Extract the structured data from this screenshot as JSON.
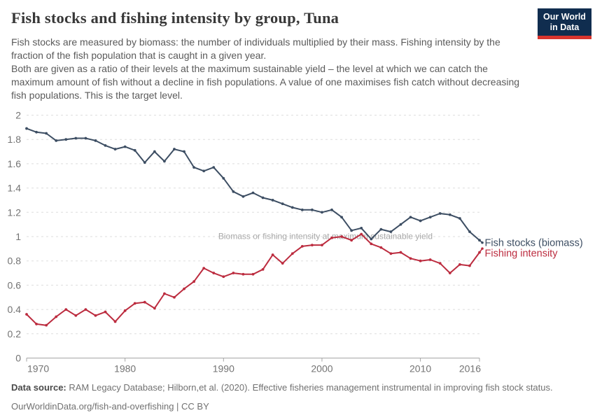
{
  "header": {
    "title": "Fish stocks and fishing intensity by group, Tuna",
    "logo": {
      "line1": "Our World",
      "line2": "in Data",
      "bg_color": "#102d4f",
      "bar_color": "#d8352e"
    }
  },
  "subtitle": {
    "para1": "Fish stocks are measured by biomass: the number of individuals multiplied by their mass. Fishing intensity by the fraction of the fish population that is caught in a given year.",
    "para2": "Both are given as a ratio of their levels at the maximum sustainable yield – the level at which we can catch the maximum amount of fish without a decline in fish populations. A value of one maximises fish catch without decreasing fish populations. This is the target level."
  },
  "chart_data": {
    "type": "line",
    "title": "Fish stocks and fishing intensity by group, Tuna",
    "xlabel": "",
    "ylabel": "",
    "x": [
      1970,
      1971,
      1972,
      1973,
      1974,
      1975,
      1976,
      1977,
      1978,
      1979,
      1980,
      1981,
      1982,
      1983,
      1984,
      1985,
      1986,
      1987,
      1988,
      1989,
      1990,
      1991,
      1992,
      1993,
      1994,
      1995,
      1996,
      1997,
      1998,
      1999,
      2000,
      2001,
      2002,
      2003,
      2004,
      2005,
      2006,
      2007,
      2008,
      2009,
      2010,
      2011,
      2012,
      2013,
      2014,
      2015,
      2016
    ],
    "series": [
      {
        "name": "Fish stocks (biomass)",
        "color": "#3d4e63",
        "values": [
          1.89,
          1.86,
          1.85,
          1.79,
          1.8,
          1.81,
          1.81,
          1.79,
          1.75,
          1.72,
          1.74,
          1.71,
          1.61,
          1.7,
          1.62,
          1.72,
          1.7,
          1.57,
          1.54,
          1.57,
          1.48,
          1.37,
          1.33,
          1.36,
          1.32,
          1.3,
          1.27,
          1.24,
          1.22,
          1.22,
          1.2,
          1.22,
          1.16,
          1.05,
          1.07,
          0.98,
          1.06,
          1.04,
          1.1,
          1.16,
          1.13,
          1.16,
          1.19,
          1.18,
          1.15,
          1.04,
          0.97
        ]
      },
      {
        "name": "Fishing intensity",
        "color": "#bc2c3f",
        "values": [
          0.36,
          0.28,
          0.27,
          0.34,
          0.4,
          0.35,
          0.4,
          0.35,
          0.38,
          0.3,
          0.39,
          0.45,
          0.46,
          0.41,
          0.53,
          0.5,
          0.57,
          0.63,
          0.74,
          0.7,
          0.67,
          0.7,
          0.69,
          0.69,
          0.73,
          0.85,
          0.78,
          0.86,
          0.92,
          0.93,
          0.93,
          0.99,
          1.0,
          0.97,
          1.02,
          0.94,
          0.91,
          0.86,
          0.87,
          0.82,
          0.8,
          0.81,
          0.78,
          0.7,
          0.77,
          0.76,
          0.87
        ]
      }
    ],
    "ylim": [
      0,
      2
    ],
    "yticks": [
      0,
      0.2,
      0.4,
      0.6,
      0.8,
      1,
      1.2,
      1.4,
      1.6,
      1.8,
      2
    ],
    "ytick_labels": [
      "0",
      "0.2",
      "0.4",
      "0.6",
      "0.8",
      "1",
      "1.2",
      "1.4",
      "1.6",
      "1.8",
      "2"
    ],
    "xticks": [
      1970,
      1980,
      1990,
      2000,
      2010,
      2016
    ],
    "annotation": "Biomass or fishing intensity at maximum sustainable yield",
    "grid": "horizontal-dashed",
    "legend_position": "right-of-line-ends"
  },
  "footer": {
    "source_label": "Data source:",
    "source_text": " RAM Legacy Database; Hilborn,et al. (2020). Effective fisheries management instrumental in improving fish stock status.",
    "license_line": "OurWorldinData.org/fish-and-overfishing | CC BY"
  }
}
